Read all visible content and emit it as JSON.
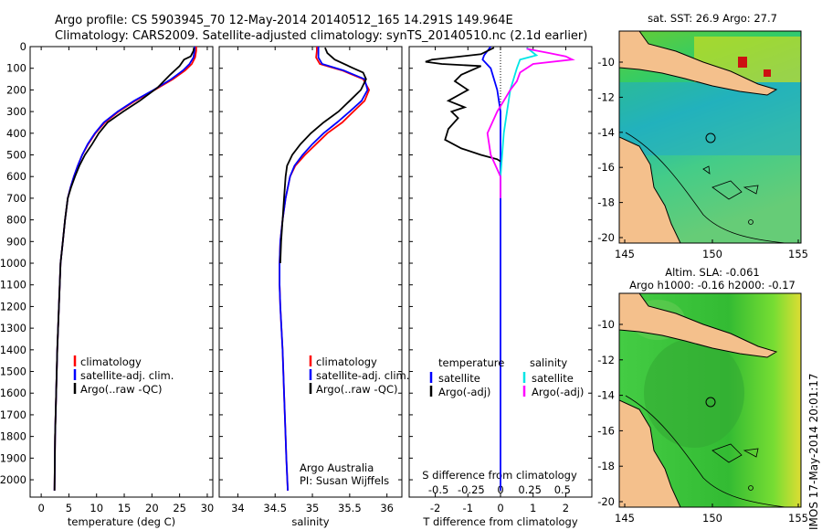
{
  "header": {
    "line1": "Argo profile: CS 5903945_70 12-May-2014 20140512_165 14.291S 149.964E",
    "line2": "Climatology: CARS2009. Satellite-adjusted climatology: synTS_20140510.nc (2.1d earlier)"
  },
  "chart_data": [
    {
      "type": "line",
      "id": "temperature",
      "xlabel": "temperature (deg C)",
      "ylabel": "",
      "xlim": [
        -2,
        31
      ],
      "ylim": [
        2080,
        0
      ],
      "xticks": [
        0,
        5,
        10,
        15,
        20,
        25,
        30
      ],
      "yticks": [
        0,
        100,
        200,
        300,
        400,
        500,
        600,
        700,
        800,
        900,
        1000,
        1100,
        1200,
        1300,
        1400,
        1500,
        1600,
        1700,
        1800,
        1900,
        2000
      ],
      "legend": {
        "position": "lower-left",
        "entries": [
          "climatology",
          "satellite-adj. clim.",
          "Argo(..raw -QC)"
        ]
      },
      "series": [
        {
          "name": "climatology",
          "color": "#ff0000",
          "x": [
            28.0,
            28.0,
            27.8,
            27.2,
            26.0,
            23.8,
            20.5,
            17.0,
            14.0,
            11.5,
            9.8,
            8.5,
            7.4,
            6.6,
            5.9,
            5.3,
            4.8,
            4.3,
            3.9,
            3.5,
            3.2,
            2.9,
            2.7,
            2.5,
            2.4
          ],
          "y": [
            0,
            20,
            50,
            80,
            110,
            150,
            200,
            250,
            300,
            350,
            400,
            450,
            500,
            550,
            600,
            650,
            700,
            800,
            900,
            1000,
            1200,
            1400,
            1600,
            1800,
            2050
          ]
        },
        {
          "name": "satellite-adj. clim.",
          "color": "#0000ff",
          "x": [
            27.7,
            27.7,
            27.5,
            26.8,
            25.6,
            23.5,
            20.3,
            16.8,
            13.8,
            11.3,
            9.7,
            8.4,
            7.4,
            6.6,
            5.9,
            5.3,
            4.8,
            4.3,
            3.9,
            3.5,
            3.2,
            2.9,
            2.7,
            2.5,
            2.4
          ],
          "y": [
            0,
            20,
            50,
            80,
            110,
            150,
            200,
            250,
            300,
            350,
            400,
            450,
            500,
            550,
            600,
            650,
            700,
            800,
            900,
            1000,
            1200,
            1400,
            1600,
            1800,
            2050
          ]
        },
        {
          "name": "Argo(..raw -QC)",
          "color": "#000000",
          "x": [
            27.6,
            27.5,
            27.0,
            25.8,
            25.0,
            23.3,
            21.0,
            17.8,
            14.8,
            12.0,
            10.4,
            9.2,
            7.9,
            6.9,
            6.1,
            5.4,
            4.8,
            4.3,
            3.9,
            3.5,
            3.2,
            2.9,
            2.7,
            2.5,
            2.4
          ],
          "y": [
            5,
            20,
            45,
            60,
            90,
            130,
            190,
            250,
            300,
            350,
            400,
            450,
            500,
            550,
            600,
            650,
            700,
            800,
            900,
            1000,
            1200,
            1400,
            1600,
            1800,
            2050
          ]
        }
      ]
    },
    {
      "type": "line",
      "id": "salinity",
      "xlabel": "salinity",
      "xlim": [
        33.75,
        36.2
      ],
      "ylim": [
        2080,
        0
      ],
      "xticks": [
        34,
        34.5,
        35,
        35.5,
        36
      ],
      "legend": {
        "position": "lower-right",
        "entries": [
          "climatology",
          "satellite-adj. clim.",
          "Argo(..raw -QC)"
        ]
      },
      "annotations": [
        "Argo Australia",
        "PI: Susan Wijffels"
      ],
      "series": [
        {
          "name": "climatology",
          "color": "#ff0000",
          "x": [
            35.06,
            35.06,
            35.05,
            35.1,
            35.4,
            35.68,
            35.76,
            35.7,
            35.55,
            35.4,
            35.2,
            35.05,
            34.9,
            34.77,
            34.7,
            34.64,
            34.6,
            34.57,
            34.56,
            34.56,
            34.57,
            34.6,
            34.62,
            34.64,
            34.65,
            34.67
          ],
          "y": [
            0,
            20,
            50,
            80,
            110,
            150,
            200,
            250,
            300,
            350,
            400,
            450,
            500,
            550,
            600,
            700,
            800,
            900,
            1000,
            1100,
            1200,
            1400,
            1600,
            1800,
            1900,
            2050
          ]
        },
        {
          "name": "satellite-adj. clim.",
          "color": "#0000ff",
          "x": [
            35.08,
            35.08,
            35.08,
            35.13,
            35.42,
            35.7,
            35.74,
            35.66,
            35.5,
            35.33,
            35.15,
            35.0,
            34.87,
            34.76,
            34.7,
            34.64,
            34.6,
            34.57,
            34.56,
            34.56,
            34.57,
            34.6,
            34.62,
            34.64,
            34.65,
            34.67
          ],
          "y": [
            0,
            20,
            50,
            80,
            110,
            150,
            200,
            250,
            300,
            350,
            400,
            450,
            500,
            550,
            600,
            700,
            800,
            900,
            1000,
            1100,
            1200,
            1400,
            1600,
            1800,
            1900,
            2050
          ]
        },
        {
          "name": "Argo(..raw -QC)",
          "color": "#000000",
          "x": [
            35.17,
            35.2,
            35.3,
            35.55,
            35.68,
            35.72,
            35.65,
            35.5,
            35.35,
            35.15,
            34.98,
            34.84,
            34.73,
            34.66,
            34.64,
            34.62,
            34.6,
            34.58,
            34.57
          ],
          "y": [
            5,
            30,
            60,
            100,
            120,
            150,
            200,
            250,
            300,
            350,
            400,
            450,
            500,
            550,
            600,
            700,
            800,
            900,
            1000
          ]
        }
      ]
    },
    {
      "type": "line",
      "id": "differences",
      "xlabel": "T difference from climatology",
      "xlabel_top": "S difference from climatology",
      "xlim": [
        -2.8,
        2.8
      ],
      "ylim": [
        2080,
        0
      ],
      "xticks": [
        -2,
        -1,
        0,
        1,
        2
      ],
      "x2ticks": [
        "-0.5",
        "-0.25",
        "0",
        "0.25",
        "0.5"
      ],
      "legend": {
        "position": "lower",
        "groups": [
          {
            "title": "temperature",
            "entries": [
              "satellite",
              "Argo(-adj)"
            ]
          },
          {
            "title": "salinity",
            "entries": [
              "satellite",
              "Argo(-adj)"
            ]
          }
        ]
      },
      "series": [
        {
          "name": "temperature satellite",
          "color": "#0000ff",
          "x": [
            -0.3,
            -0.5,
            -0.55,
            -0.3,
            -0.1,
            0,
            0
          ],
          "y": [
            0,
            40,
            60,
            100,
            200,
            300,
            2050
          ]
        },
        {
          "name": "temperature Argo(-adj)",
          "color": "#000000",
          "x": [
            -0.2,
            -0.6,
            -2.1,
            -2.3,
            -1.8,
            -0.6,
            -1.2,
            -1.4,
            -1.0,
            -1.6,
            -1.1,
            -1.5,
            -1.3,
            -1.6,
            -1.7,
            -1.2,
            -0.6,
            -0.1,
            0
          ],
          "y": [
            5,
            35,
            60,
            70,
            80,
            90,
            130,
            160,
            200,
            250,
            280,
            300,
            330,
            380,
            430,
            470,
            500,
            520,
            530
          ]
        },
        {
          "name": "salinity satellite",
          "color": "#00e5e5",
          "x": [
            0.8,
            1.1,
            0.6,
            0.5,
            0.4,
            0.3,
            0.2,
            0.1,
            0.05,
            0
          ],
          "y": [
            5,
            40,
            60,
            100,
            150,
            200,
            300,
            400,
            500,
            600
          ]
        },
        {
          "name": "salinity Argo(-adj)",
          "color": "#ff00ff",
          "x": [
            0.8,
            1.5,
            2.0,
            2.2,
            1.0,
            0.6,
            0.5,
            0.3,
            0.1,
            -0.1,
            -0.4,
            -0.3,
            0,
            0
          ],
          "y": [
            10,
            30,
            45,
            60,
            80,
            120,
            160,
            200,
            250,
            300,
            400,
            500,
            600,
            700
          ]
        }
      ]
    }
  ],
  "maps": {
    "sst": {
      "title": "sat. SST: 26.9 Argo: 27.7",
      "xticks": [
        "145",
        "150",
        "155"
      ],
      "yticks": [
        "-10",
        "-12",
        "-14",
        "-16",
        "-18",
        "-20"
      ]
    },
    "sla": {
      "title1": "Altim. SLA: -0.061",
      "title2": "Argo h1000: -0.16 h2000: -0.17",
      "xticks": [
        "145",
        "150",
        "155"
      ],
      "yticks": [
        "-10",
        "-12",
        "-14",
        "-16",
        "-18",
        "-20"
      ]
    }
  },
  "footer_vertical": "IMOS 17-May-2014 20:01:17",
  "colors": {
    "clim": "#ff0000",
    "satadj": "#0000ff",
    "argo": "#000000",
    "sal_sat": "#00e5e5",
    "sal_argo": "#ff00ff",
    "land": "#f4c08c"
  }
}
